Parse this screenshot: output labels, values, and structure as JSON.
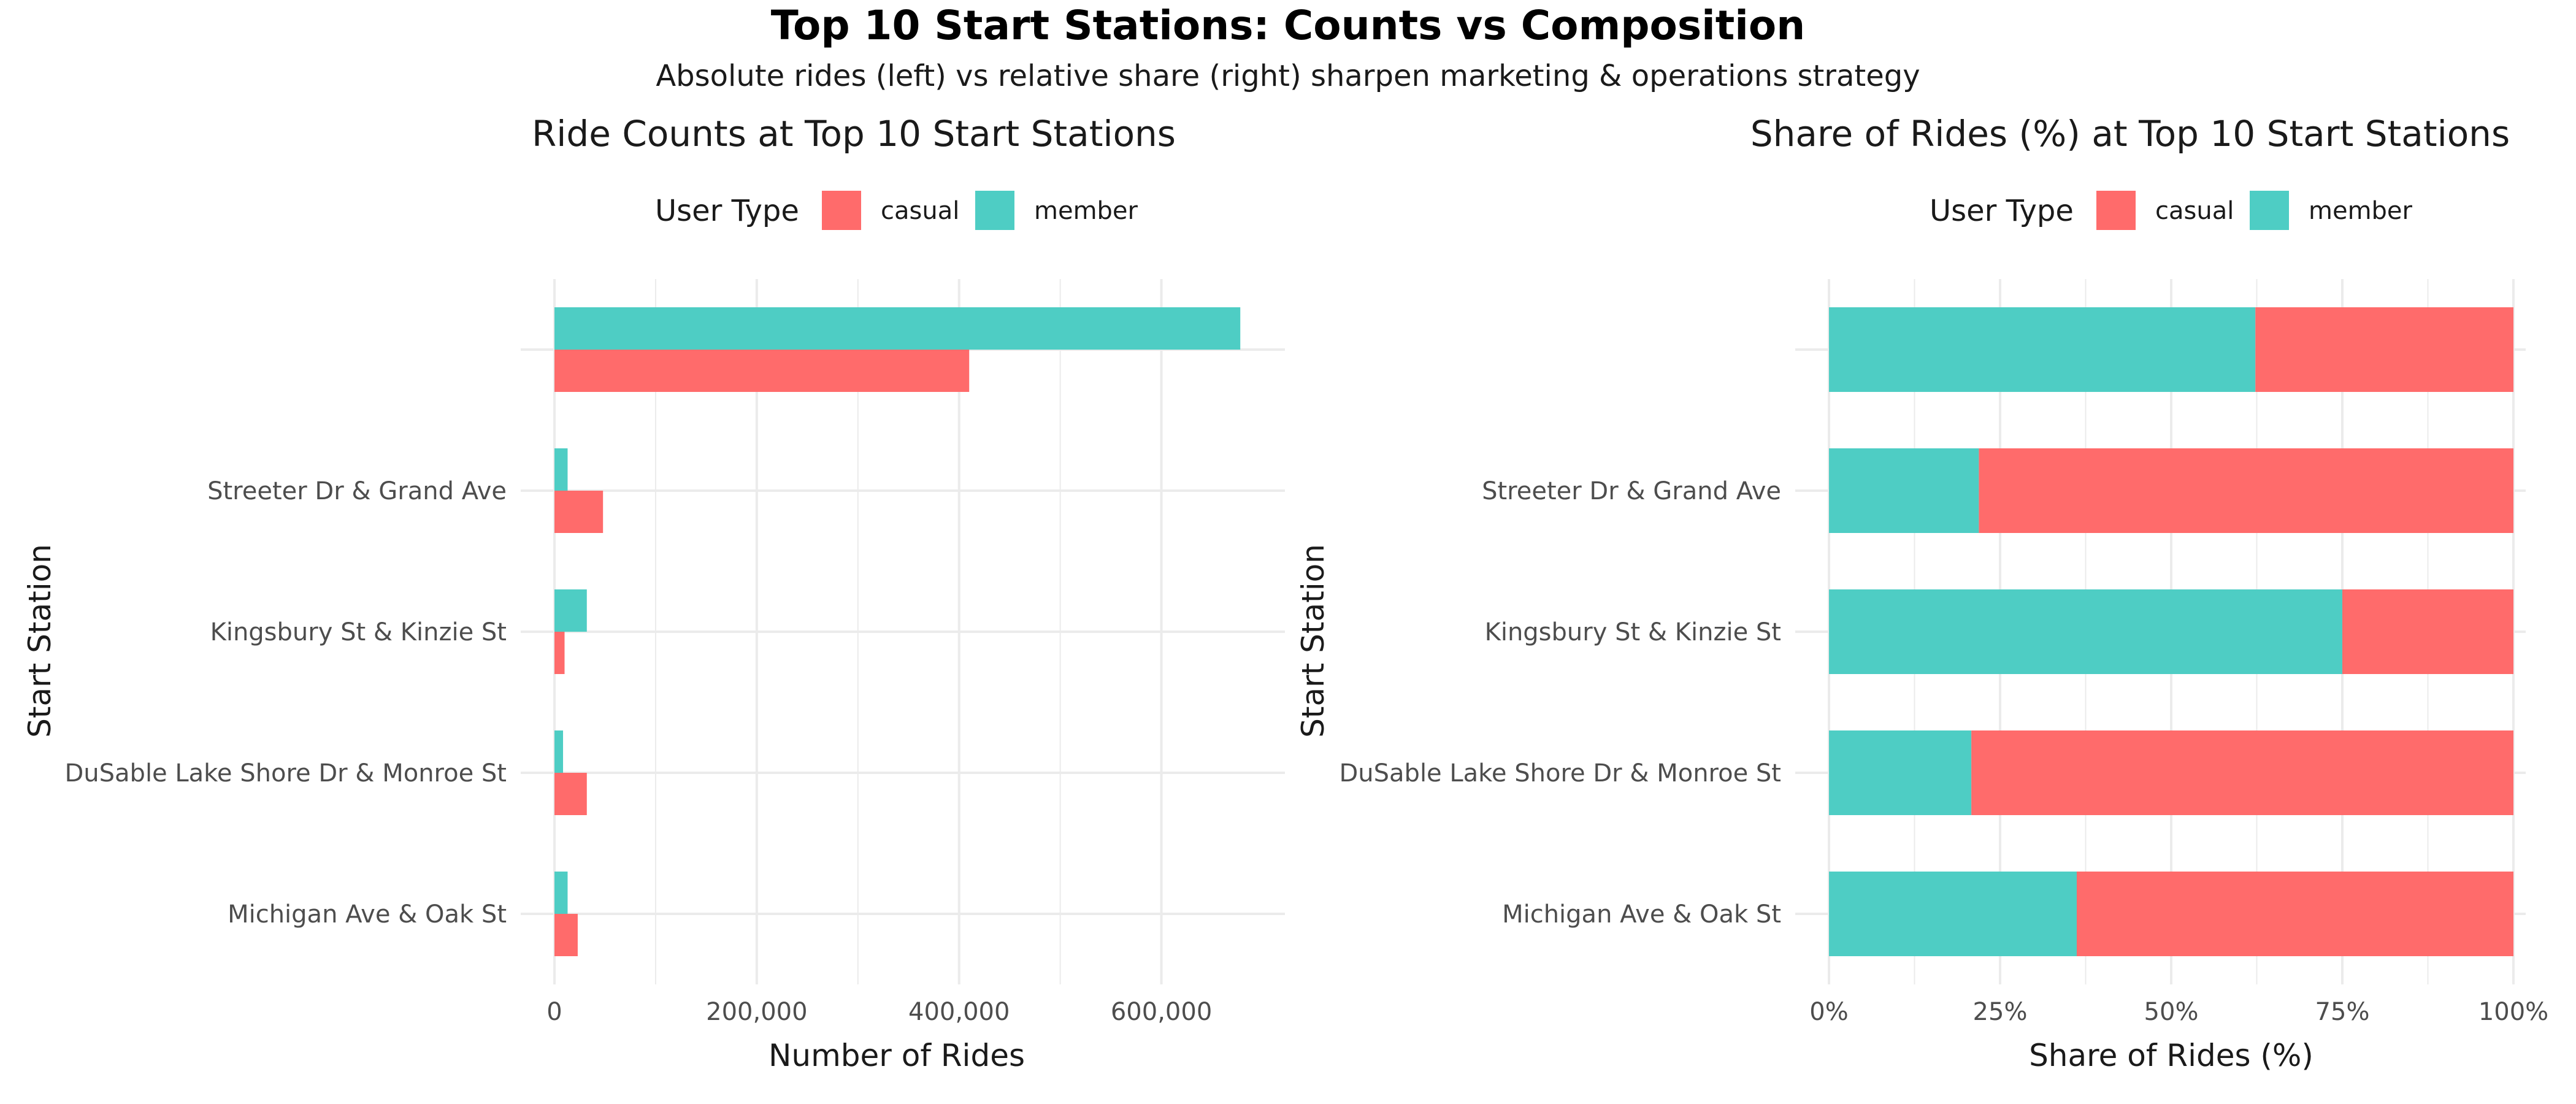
{
  "title": "Top 10 Start Stations: Counts vs Composition",
  "subtitle": "Absolute rides (left) vs relative share (right) sharpen marketing & operations strategy",
  "colors": {
    "casual": "#FF6B6B",
    "member": "#4ECDC4",
    "grid": "#EBEBEB",
    "axis_text": "#4D4D4D",
    "text": "#1A1A1A"
  },
  "chart_data": [
    {
      "type": "bar",
      "orientation": "horizontal",
      "position": "dodge",
      "title": "Ride Counts at Top 10 Start Stations",
      "xlabel": "Number of Rides",
      "ylabel": "Start Station",
      "legend_title": "User Type",
      "legend_position": "top",
      "grid": true,
      "xlim": [
        0,
        710000
      ],
      "x_ticks": [
        0,
        200000,
        400000,
        600000
      ],
      "x_tick_labels": [
        "0",
        "200,000",
        "400,000",
        "600,000"
      ],
      "categories": [
        "",
        "Streeter Dr & Grand Ave",
        "Kingsbury St & Kinzie St",
        "DuSable Lake Shore Dr & Monroe St",
        "Michigan Ave & Oak St"
      ],
      "series": [
        {
          "name": "casual",
          "values": [
            410000,
            48000,
            10000,
            32000,
            23000
          ]
        },
        {
          "name": "member",
          "values": [
            678000,
            13000,
            32000,
            8500,
            13000
          ]
        }
      ]
    },
    {
      "type": "bar",
      "orientation": "horizontal",
      "position": "fill",
      "title": "Share of Rides (%) at Top 10 Start Stations",
      "xlabel": "Share of Rides (%)",
      "ylabel": "Start Station",
      "legend_title": "User Type",
      "legend_position": "top",
      "grid": true,
      "xlim": [
        0,
        100
      ],
      "x_ticks": [
        0,
        25,
        50,
        75,
        100
      ],
      "x_tick_labels": [
        "0%",
        "25%",
        "50%",
        "75%",
        "100%"
      ],
      "categories": [
        "",
        "Streeter Dr & Grand Ave",
        "Kingsbury St & Kinzie St",
        "DuSable Lake Shore Dr & Monroe St",
        "Michigan Ave & Oak St"
      ],
      "series": [
        {
          "name": "member",
          "values": [
            62.3,
            21.9,
            75,
            20.8,
            36.2
          ]
        },
        {
          "name": "casual",
          "values": [
            37.7,
            78.1,
            25,
            79.2,
            63.8
          ]
        }
      ]
    }
  ]
}
